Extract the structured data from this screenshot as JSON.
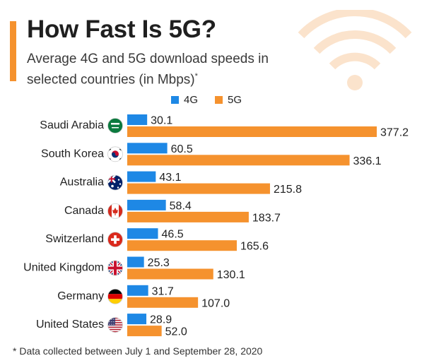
{
  "header": {
    "title": "How Fast Is 5G?",
    "subtitle": "Average 4G and 5G download speeds in selected countries (in Mbps)",
    "subtitle_mark": "*"
  },
  "footnote": "* Data collected between July 1 and September 28, 2020",
  "colors": {
    "accent": "#f5922e",
    "series_4g": "#1e88e5",
    "series_5g": "#f5922e",
    "wifi_icon": "#fbe3cc"
  },
  "icons": [
    "wifi-icon",
    "flag-saudi-arabia",
    "flag-south-korea",
    "flag-australia",
    "flag-canada",
    "flag-switzerland",
    "flag-united-kingdom",
    "flag-germany",
    "flag-united-states"
  ],
  "chart_data": {
    "type": "bar",
    "orientation": "horizontal",
    "categories": [
      "Saudi Arabia",
      "South Korea",
      "Australia",
      "Canada",
      "Switzerland",
      "United Kingdom",
      "Germany",
      "United States"
    ],
    "series": [
      {
        "name": "4G",
        "values": [
          30.1,
          60.5,
          43.1,
          58.4,
          46.5,
          25.3,
          31.7,
          28.9
        ]
      },
      {
        "name": "5G",
        "values": [
          377.2,
          336.1,
          215.8,
          183.7,
          165.6,
          130.1,
          107.0,
          52.0
        ]
      }
    ],
    "value_labels": {
      "4G": [
        "30.1",
        "60.5",
        "43.1",
        "58.4",
        "46.5",
        "25.3",
        "31.7",
        "28.9"
      ],
      "5G": [
        "377.2",
        "336.1",
        "215.8",
        "183.7",
        "165.6",
        "130.1",
        "107.0",
        "52.0"
      ]
    },
    "legend_position": "top",
    "grid": false,
    "data_labels": true,
    "xlim": [
      0,
      400
    ]
  }
}
